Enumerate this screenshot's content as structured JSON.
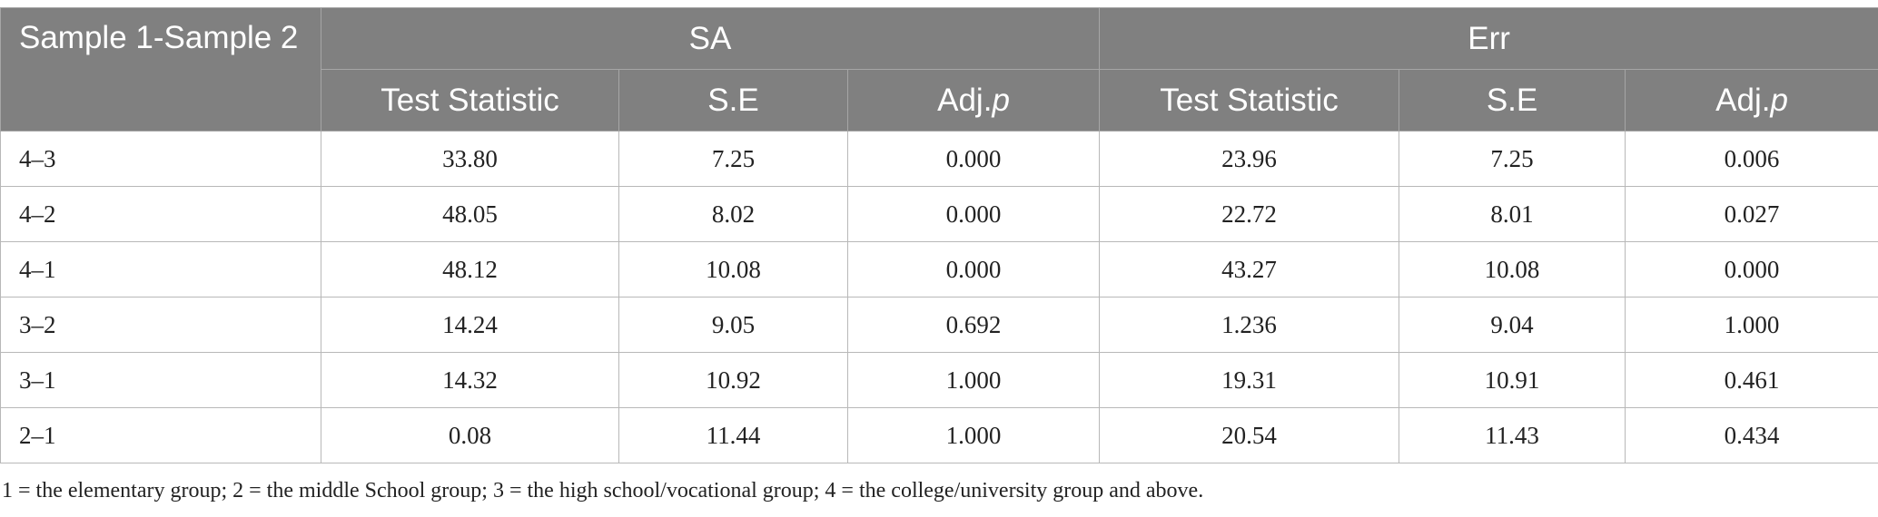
{
  "table": {
    "corner_header": "Sample 1-Sample 2",
    "groups": [
      "SA",
      "Err"
    ],
    "sub_headers": [
      {
        "text": "Test Statistic",
        "italic": ""
      },
      {
        "text": "S.E",
        "italic": ""
      },
      {
        "text": "Adj.",
        "italic": "p"
      },
      {
        "text": "Test Statistic",
        "italic": ""
      },
      {
        "text": "S.E",
        "italic": ""
      },
      {
        "text": "Adj.",
        "italic": "p"
      }
    ],
    "rows": [
      [
        "4–3",
        "33.80",
        "7.25",
        "0.000",
        "23.96",
        "7.25",
        "0.006"
      ],
      [
        "4–2",
        "48.05",
        "8.02",
        "0.000",
        "22.72",
        "8.01",
        "0.027"
      ],
      [
        "4–1",
        "48.12",
        "10.08",
        "0.000",
        "43.27",
        "10.08",
        "0.000"
      ],
      [
        "3–2",
        "14.24",
        "9.05",
        "0.692",
        "1.236",
        "9.04",
        "1.000"
      ],
      [
        "3–1",
        "14.32",
        "10.92",
        "1.000",
        "19.31",
        "10.91",
        "0.461"
      ],
      [
        "2–1",
        "0.08",
        "11.44",
        "1.000",
        "20.54",
        "11.43",
        "0.434"
      ]
    ]
  },
  "footnote": "1 = the elementary group; 2 = the middle School group; 3 = the high school/vocational group; 4 = the college/university group and above."
}
